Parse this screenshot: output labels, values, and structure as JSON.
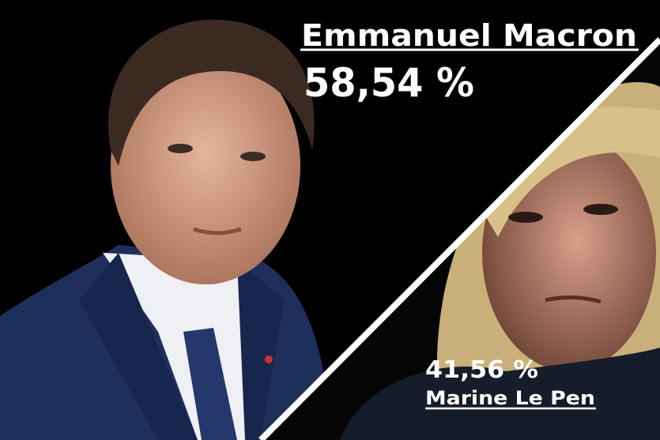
{
  "winner": {
    "name": "Emmanuel Macron",
    "score": "58,54 %"
  },
  "runner_up": {
    "score": "41,56 %",
    "name": "Marine Le Pen"
  }
}
